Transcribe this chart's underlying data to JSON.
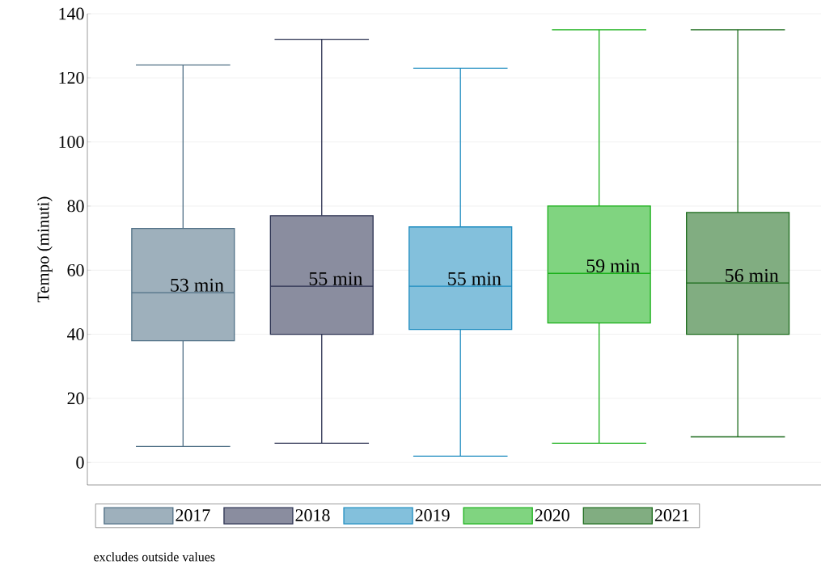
{
  "chart_data": {
    "type": "box",
    "ylabel": "Tempo (minuti)",
    "series": [
      {
        "name": "2017",
        "color": "#4f6f85",
        "boxes": [
          {
            "low": 5,
            "q1": 38,
            "median": 53,
            "q3": 73,
            "high": 124
          }
        ]
      },
      {
        "name": "2018",
        "color": "#2a3050",
        "boxes": [
          {
            "low": 6,
            "q1": 40,
            "median": 55,
            "q3": 77,
            "high": 132
          }
        ]
      },
      {
        "name": "2019",
        "color": "#1d8cc0",
        "boxes": [
          {
            "low": 2,
            "q1": 41.5,
            "median": 55,
            "q3": 73.5,
            "high": 123
          }
        ]
      },
      {
        "name": "2020",
        "color": "#19b019",
        "boxes": [
          {
            "low": 6,
            "q1": 43.5,
            "median": 59,
            "q3": 80,
            "high": 135
          }
        ]
      },
      {
        "name": "2021",
        "color": "#1a6a1a",
        "boxes": [
          {
            "low": 8,
            "q1": 40,
            "median": 56,
            "q3": 78,
            "high": 135
          }
        ]
      }
    ],
    "annotations": [
      {
        "text": "53 min",
        "y": 53
      },
      {
        "text": "55 min",
        "y": 55
      },
      {
        "text": "55 min",
        "y": 55
      },
      {
        "text": "59 min",
        "y": 59
      },
      {
        "text": "56 min",
        "y": 56
      },
      "excludes outside values"
    ],
    "ylim": [
      -7,
      140
    ],
    "yticks": [
      0,
      20,
      40,
      60,
      80,
      100,
      120,
      140
    ],
    "grid": "y",
    "legend": "bottom"
  }
}
